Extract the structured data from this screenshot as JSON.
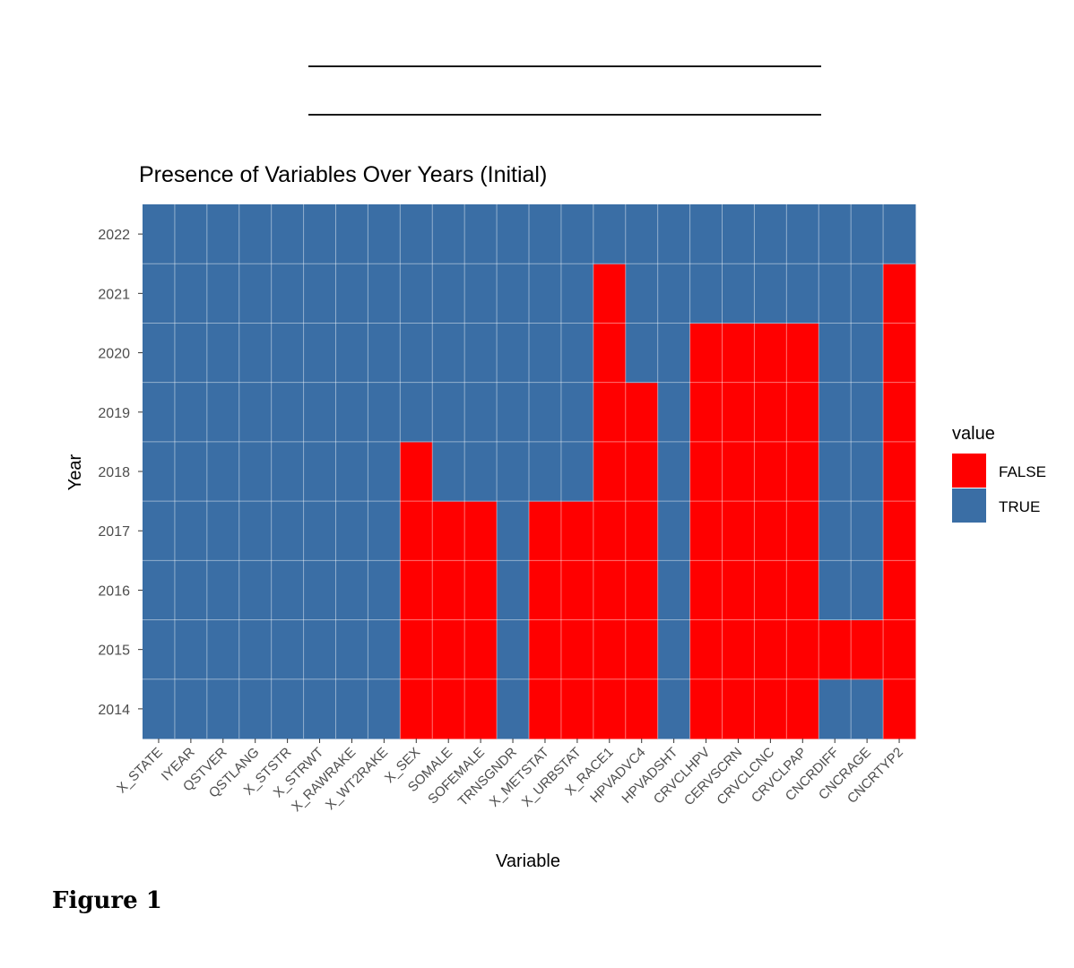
{
  "figure_caption": "Figure 1",
  "chart_data": {
    "type": "heatmap",
    "title": "Presence of Variables Over Years (Initial)",
    "xlabel": "Variable",
    "ylabel": "Year",
    "x": [
      "X_STATE",
      "IYEAR",
      "QSTVER",
      "QSTLANG",
      "X_STSTR",
      "X_STRWT",
      "X_RAWRAKE",
      "X_WT2RAKE",
      "X_SEX",
      "SOMALE",
      "SOFEMALE",
      "TRNSGNDR",
      "X_METSTAT",
      "X_URBSTAT",
      "X_RACE1",
      "HPVADVC4",
      "HPVADSHT",
      "CRVCLHPV",
      "CERVSCRN",
      "CRVCLCNC",
      "CRVCLPAP",
      "CNCRDIFF",
      "CNCRAGE",
      "CNCRTYP2"
    ],
    "y": [
      "2014",
      "2015",
      "2016",
      "2017",
      "2018",
      "2019",
      "2020",
      "2021",
      "2022"
    ],
    "values": {
      "X_STATE": [
        true,
        true,
        true,
        true,
        true,
        true,
        true,
        true,
        true
      ],
      "IYEAR": [
        true,
        true,
        true,
        true,
        true,
        true,
        true,
        true,
        true
      ],
      "QSTVER": [
        true,
        true,
        true,
        true,
        true,
        true,
        true,
        true,
        true
      ],
      "QSTLANG": [
        true,
        true,
        true,
        true,
        true,
        true,
        true,
        true,
        true
      ],
      "X_STSTR": [
        true,
        true,
        true,
        true,
        true,
        true,
        true,
        true,
        true
      ],
      "X_STRWT": [
        true,
        true,
        true,
        true,
        true,
        true,
        true,
        true,
        true
      ],
      "X_RAWRAKE": [
        true,
        true,
        true,
        true,
        true,
        true,
        true,
        true,
        true
      ],
      "X_WT2RAKE": [
        true,
        true,
        true,
        true,
        true,
        true,
        true,
        true,
        true
      ],
      "X_SEX": [
        false,
        false,
        false,
        false,
        false,
        true,
        true,
        true,
        true
      ],
      "SOMALE": [
        false,
        false,
        false,
        false,
        true,
        true,
        true,
        true,
        true
      ],
      "SOFEMALE": [
        false,
        false,
        false,
        false,
        true,
        true,
        true,
        true,
        true
      ],
      "TRNSGNDR": [
        true,
        true,
        true,
        true,
        true,
        true,
        true,
        true,
        true
      ],
      "X_METSTAT": [
        false,
        false,
        false,
        false,
        true,
        true,
        true,
        true,
        true
      ],
      "X_URBSTAT": [
        false,
        false,
        false,
        false,
        true,
        true,
        true,
        true,
        true
      ],
      "X_RACE1": [
        false,
        false,
        false,
        false,
        false,
        false,
        false,
        false,
        true
      ],
      "HPVADVC4": [
        false,
        false,
        false,
        false,
        false,
        false,
        true,
        true,
        true
      ],
      "HPVADSHT": [
        true,
        true,
        true,
        true,
        true,
        true,
        true,
        true,
        true
      ],
      "CRVCLHPV": [
        false,
        false,
        false,
        false,
        false,
        false,
        false,
        true,
        true
      ],
      "CERVSCRN": [
        false,
        false,
        false,
        false,
        false,
        false,
        false,
        true,
        true
      ],
      "CRVCLCNC": [
        false,
        false,
        false,
        false,
        false,
        false,
        false,
        true,
        true
      ],
      "CRVCLPAP": [
        false,
        false,
        false,
        false,
        false,
        false,
        false,
        true,
        true
      ],
      "CNCRDIFF": [
        true,
        false,
        true,
        true,
        true,
        true,
        true,
        true,
        true
      ],
      "CNCRAGE": [
        true,
        false,
        true,
        true,
        true,
        true,
        true,
        true,
        true
      ],
      "CNCRTYP2": [
        false,
        false,
        false,
        false,
        false,
        false,
        false,
        false,
        true
      ]
    },
    "legend": {
      "title": "value",
      "placement": "right",
      "entries": [
        {
          "label": "FALSE",
          "color": "#ff0000"
        },
        {
          "label": "TRUE",
          "color": "#3a6ea5"
        }
      ]
    },
    "grid": true
  }
}
